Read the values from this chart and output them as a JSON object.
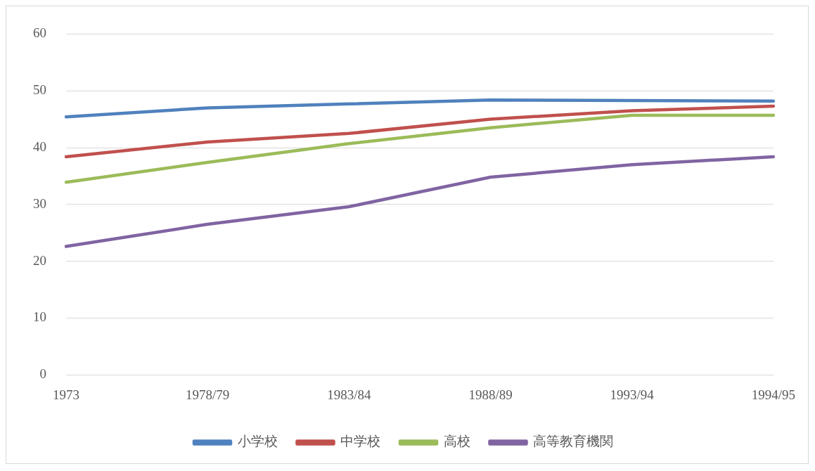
{
  "chart_data": {
    "type": "line",
    "categories": [
      "1973",
      "1978/79",
      "1983/84",
      "1988/89",
      "1993/94",
      "1994/95"
    ],
    "series": [
      {
        "name": "小学校",
        "color": "#4f81bd",
        "values": [
          45.4,
          47.0,
          47.7,
          48.4,
          48.3,
          48.2
        ]
      },
      {
        "name": "中学校",
        "color": "#c0504d",
        "values": [
          38.4,
          41.0,
          42.5,
          45.0,
          46.5,
          47.3
        ]
      },
      {
        "name": "高校",
        "color": "#9bbb59",
        "values": [
          33.9,
          37.4,
          40.7,
          43.5,
          45.7,
          45.7
        ]
      },
      {
        "name": "高等教育機関",
        "color": "#8064a2",
        "values": [
          22.6,
          26.5,
          29.6,
          34.8,
          37.0,
          38.4
        ]
      }
    ],
    "ylim": [
      0,
      60
    ],
    "yticks": [
      0,
      10,
      20,
      30,
      40,
      50,
      60
    ],
    "grid": "y",
    "legend": "bottom",
    "marker": "none",
    "line_style": "solid"
  }
}
